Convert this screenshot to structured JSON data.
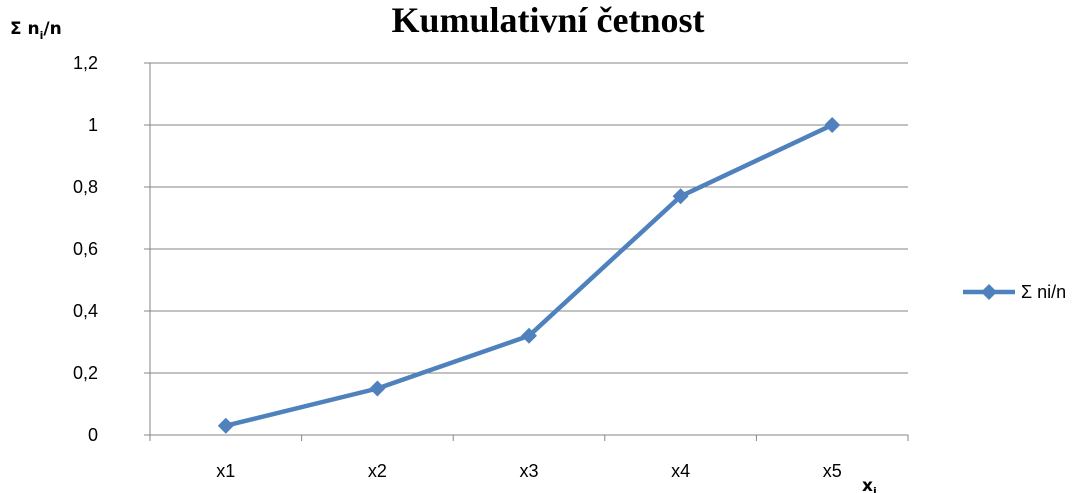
{
  "chart_data": {
    "type": "line",
    "title": "Kumulativní četnost",
    "ylabel": {
      "main": "Σ n",
      "sub": "i",
      "tail": "/n"
    },
    "xlabel": {
      "main": "x",
      "sub": "i"
    },
    "categories": [
      "x1",
      "x2",
      "x3",
      "x4",
      "x5"
    ],
    "ylim": [
      0,
      1.2
    ],
    "yticks": [
      "0",
      "0,2",
      "0,4",
      "0,6",
      "0,8",
      "1",
      "1,2"
    ],
    "grid": true,
    "legend_position": "right",
    "series": [
      {
        "name": "Σ ni/n",
        "values": [
          0.03,
          0.15,
          0.32,
          0.77,
          1.0
        ],
        "color": "#4F81BD",
        "marker": "diamond"
      }
    ]
  }
}
